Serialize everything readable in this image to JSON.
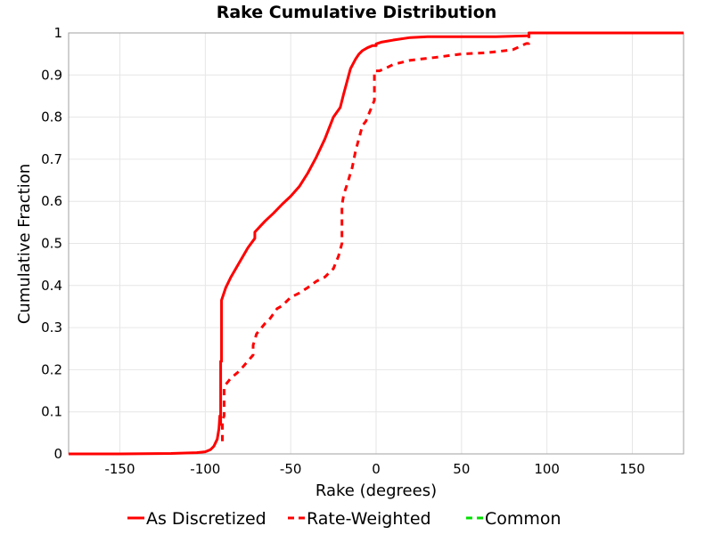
{
  "chart_data": {
    "type": "line",
    "title": "Rake Cumulative Distribution",
    "xlabel": "Rake (degrees)",
    "ylabel": "Cumulative Fraction",
    "xlim": [
      -180,
      180
    ],
    "ylim": [
      0,
      1
    ],
    "grid": true,
    "legend_position": "bottom",
    "x_ticks": [
      -150,
      -100,
      -50,
      0,
      50,
      100,
      150
    ],
    "y_ticks": [
      0,
      0.1,
      0.2,
      0.3,
      0.4,
      0.5,
      0.6,
      0.7,
      0.8,
      0.9,
      1
    ],
    "x_tick_labels": [
      "-150",
      "-100",
      "-50",
      "0",
      "50",
      "100",
      "150"
    ],
    "y_tick_labels": [
      "0",
      "0.1",
      "0.2",
      "0.3",
      "0.4",
      "0.5",
      "0.6",
      "0.7",
      "0.8",
      "0.9",
      "1"
    ],
    "series": [
      {
        "name": "As Discretized",
        "color": "#ff0000",
        "style": "solid",
        "x": [
          -180,
          -150,
          -120,
          -105,
          -100,
          -97,
          -95,
          -93,
          -92,
          -91.5,
          -91.5,
          -91,
          -91,
          -90.5,
          -90.5,
          -88,
          -85,
          -80,
          -75,
          -71,
          -71,
          -68,
          -65,
          -60,
          -55,
          -50,
          -45,
          -40,
          -35,
          -30,
          -25,
          -21,
          -19,
          -15,
          -12,
          -10,
          -8,
          -5,
          -2,
          0,
          0,
          3,
          10,
          20,
          30,
          50,
          70,
          88,
          89.5,
          89.5,
          90,
          120,
          150,
          180
        ],
        "y": [
          0,
          0,
          0.001,
          0.003,
          0.005,
          0.01,
          0.018,
          0.035,
          0.06,
          0.09,
          0.07,
          0.07,
          0.22,
          0.22,
          0.365,
          0.395,
          0.42,
          0.455,
          0.49,
          0.512,
          0.527,
          0.54,
          0.553,
          0.572,
          0.593,
          0.612,
          0.635,
          0.667,
          0.705,
          0.748,
          0.8,
          0.823,
          0.855,
          0.915,
          0.938,
          0.95,
          0.958,
          0.965,
          0.97,
          0.97,
          0.974,
          0.978,
          0.983,
          0.989,
          0.991,
          0.991,
          0.991,
          0.993,
          0.993,
          1.0,
          1.0,
          1.0,
          1.0,
          1.0
        ]
      },
      {
        "name": "Rate-Weighted",
        "color": "#ff0000",
        "style": "dashed",
        "x": [
          -90,
          -90,
          -89,
          -89,
          -88,
          -85,
          -80,
          -72,
          -72,
          -70,
          -67,
          -65,
          -62,
          -58,
          -55,
          -50,
          -45,
          -40,
          -35,
          -30,
          -25,
          -22,
          -20,
          -20,
          -19,
          -17,
          -14,
          -12,
          -10,
          -8,
          -6,
          -4,
          -2,
          -1,
          -1,
          2,
          5,
          10,
          20,
          35,
          50,
          65,
          80,
          88,
          89.5,
          89.5,
          120,
          150,
          180
        ],
        "y": [
          0.03,
          0.08,
          0.09,
          0.155,
          0.165,
          0.18,
          0.197,
          0.235,
          0.258,
          0.285,
          0.3,
          0.31,
          0.322,
          0.345,
          0.352,
          0.372,
          0.382,
          0.395,
          0.41,
          0.42,
          0.44,
          0.47,
          0.5,
          0.59,
          0.615,
          0.64,
          0.68,
          0.72,
          0.75,
          0.78,
          0.79,
          0.81,
          0.83,
          0.84,
          0.91,
          0.91,
          0.915,
          0.925,
          0.935,
          0.942,
          0.95,
          0.953,
          0.96,
          0.975,
          0.975,
          1.0,
          1.0,
          1.0,
          1.0
        ]
      },
      {
        "name": "Common",
        "color": "#00e000",
        "style": "dashed",
        "x": [],
        "y": []
      }
    ]
  }
}
